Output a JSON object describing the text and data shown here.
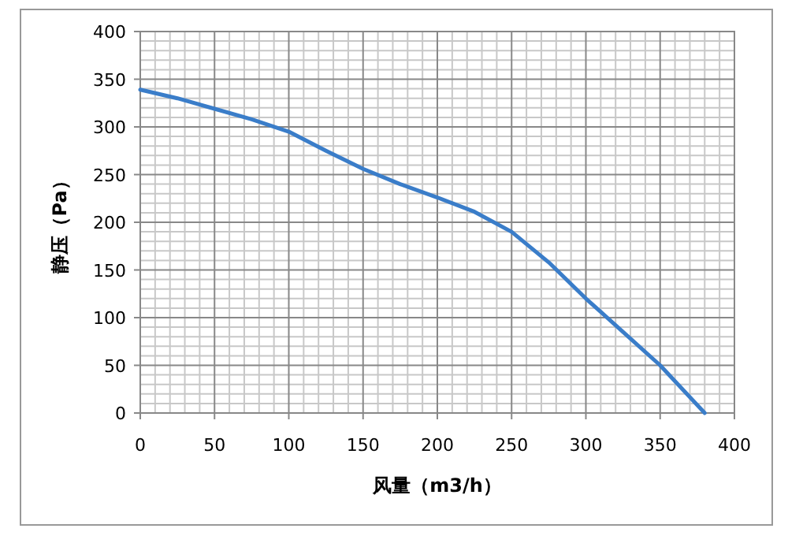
{
  "chart_data": {
    "type": "line",
    "xlabel": "风量（m3/h）",
    "ylabel": "静压（Pa）",
    "xlim": [
      0,
      400
    ],
    "ylim": [
      0,
      400
    ],
    "xticks": [
      0,
      {
        "value": 10,
        "label": null
      },
      {
        "value": 20,
        "label": null
      },
      {
        "value": 30,
        "label": null
      },
      {
        "value": 40,
        "label": null
      },
      50,
      {
        "value": 60,
        "label": null
      },
      {
        "value": 70,
        "label": null
      },
      {
        "value": 80,
        "label": null
      },
      {
        "value": 90,
        "label": null
      },
      100,
      {
        "value": 110,
        "label": null
      },
      {
        "value": 120,
        "label": null
      },
      {
        "value": 130,
        "label": null
      },
      {
        "value": 140,
        "label": null
      },
      150,
      {
        "value": 160,
        "label": null
      },
      {
        "value": 170,
        "label": null
      },
      {
        "value": 180,
        "label": null
      },
      {
        "value": 190,
        "label": null
      },
      200,
      {
        "value": 210,
        "label": null
      },
      {
        "value": 220,
        "label": null
      },
      {
        "value": 230,
        "label": null
      },
      {
        "value": 240,
        "label": null
      },
      250,
      {
        "value": 260,
        "label": null
      },
      {
        "value": 270,
        "label": null
      },
      {
        "value": 280,
        "label": null
      },
      {
        "value": 290,
        "label": null
      },
      300,
      {
        "value": 310,
        "label": null
      },
      {
        "value": 320,
        "label": null
      },
      {
        "value": 330,
        "label": null
      },
      {
        "value": 340,
        "label": null
      },
      350,
      {
        "value": 360,
        "label": null
      },
      {
        "value": 370,
        "label": null
      },
      {
        "value": 380,
        "label": null
      },
      {
        "value": 390,
        "label": null
      },
      400
    ],
    "yticks": [
      0,
      {
        "value": 10,
        "label": null
      },
      {
        "value": 20,
        "label": null
      },
      {
        "value": 30,
        "label": null
      },
      {
        "value": 40,
        "label": null
      },
      50,
      {
        "value": 60,
        "label": null
      },
      {
        "value": 70,
        "label": null
      },
      {
        "value": 80,
        "label": null
      },
      {
        "value": 90,
        "label": null
      },
      100,
      {
        "value": 110,
        "label": null
      },
      {
        "value": 120,
        "label": null
      },
      {
        "value": 130,
        "label": null
      },
      {
        "value": 140,
        "label": null
      },
      150,
      {
        "value": 160,
        "label": null
      },
      {
        "value": 170,
        "label": null
      },
      {
        "value": 180,
        "label": null
      },
      {
        "value": 190,
        "label": null
      },
      200,
      {
        "value": 210,
        "label": null
      },
      {
        "value": 220,
        "label": null
      },
      {
        "value": 230,
        "label": null
      },
      {
        "value": 240,
        "label": null
      },
      250,
      {
        "value": 260,
        "label": null
      },
      {
        "value": 270,
        "label": null
      },
      {
        "value": 280,
        "label": null
      },
      {
        "value": 290,
        "label": null
      },
      300,
      {
        "value": 310,
        "label": null
      },
      {
        "value": 320,
        "label": null
      },
      {
        "value": 330,
        "label": null
      },
      {
        "value": 340,
        "label": null
      },
      350,
      {
        "value": 360,
        "label": null
      },
      {
        "value": 370,
        "label": null
      },
      {
        "value": 380,
        "label": null
      },
      {
        "value": 390,
        "label": null
      },
      400
    ],
    "grid": true,
    "marker": "none",
    "line_style": "solid",
    "series": [
      {
        "color": "#3a7dc9",
        "x": [
          0,
          25,
          50,
          75,
          100,
          125,
          150,
          175,
          200,
          225,
          250,
          275,
          300,
          325,
          350,
          380
        ],
        "values": [
          339,
          330,
          319,
          308,
          295,
          275,
          256,
          240,
          226,
          211,
          190,
          158,
          120,
          85,
          50,
          0
        ]
      }
    ]
  }
}
